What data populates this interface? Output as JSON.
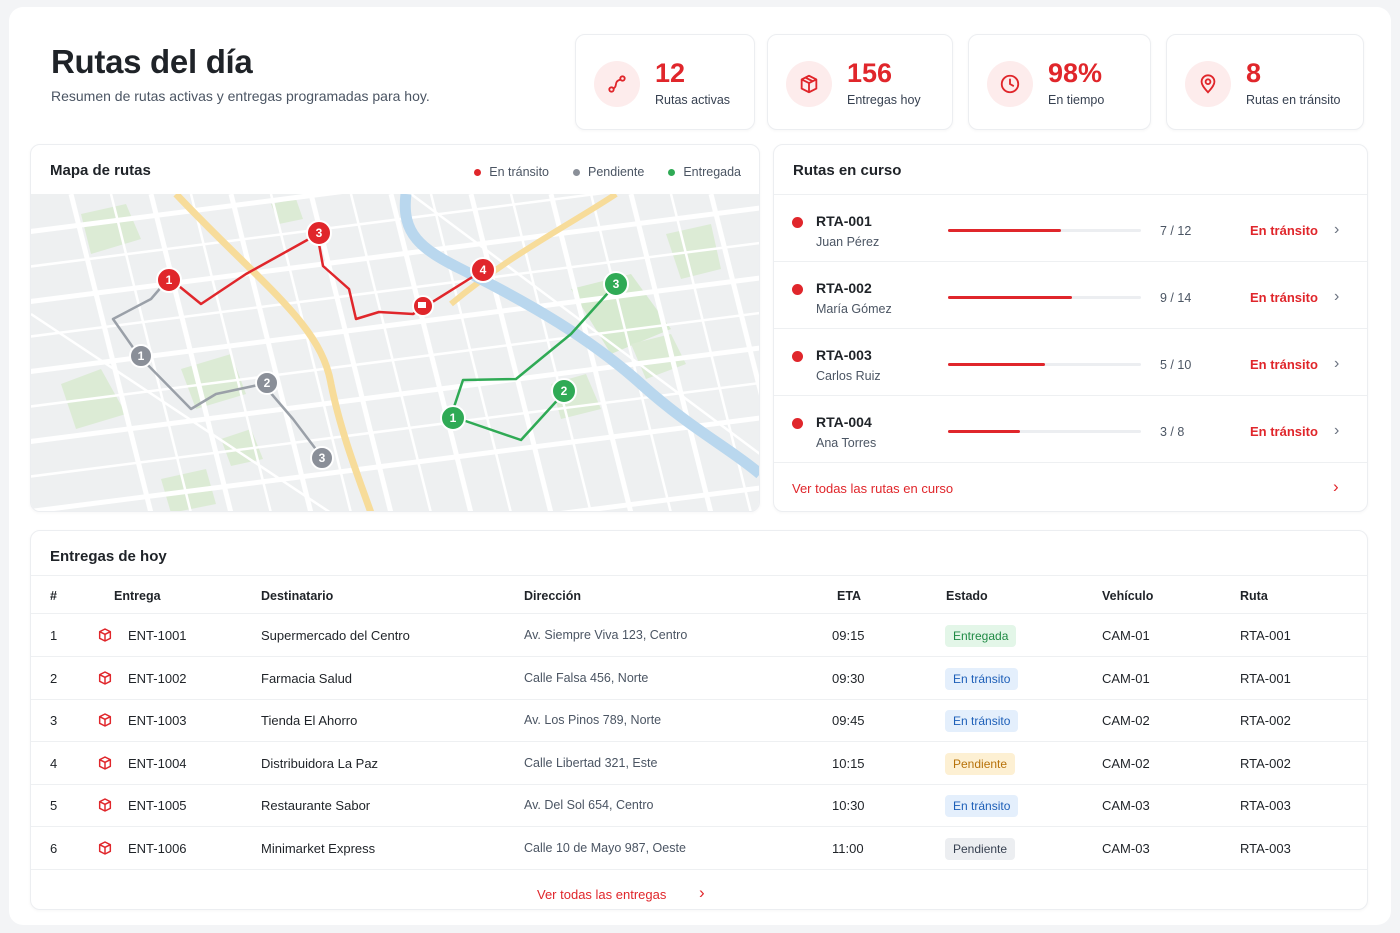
{
  "header": {
    "title": "Rutas del día",
    "subtitle": "Resumen de rutas activas y entregas programadas para hoy."
  },
  "stats": [
    {
      "value": "12",
      "label": "Rutas activas",
      "icon": "route-icon"
    },
    {
      "value": "156",
      "label": "Entregas hoy",
      "icon": "box-icon"
    },
    {
      "value": "98%",
      "label": "En tiempo",
      "icon": "clock-icon"
    },
    {
      "value": "8",
      "label": "Rutas en tránsito",
      "icon": "location-pin-icon"
    }
  ],
  "map_card": {
    "title": "Mapa de rutas",
    "legend": [
      {
        "label": "En tránsito",
        "color": "#e0262b"
      },
      {
        "label": "Pendiente",
        "color": "#8a8f98"
      },
      {
        "label": "Entregada",
        "color": "#2faa55"
      }
    ],
    "markers": {
      "red": [
        "1",
        "3",
        "4"
      ],
      "gray": [
        "1",
        "2",
        "3"
      ],
      "green": [
        "1",
        "2",
        "3"
      ]
    }
  },
  "routes_card": {
    "title": "Rutas en curso",
    "routes": [
      {
        "id": "RTA-001",
        "driver": "Juan Pérez",
        "done": 7,
        "total": 12,
        "progress": "7 / 12",
        "status": "En tránsito"
      },
      {
        "id": "RTA-002",
        "driver": "María Gómez",
        "done": 9,
        "total": 14,
        "progress": "9 / 14",
        "status": "En tránsito"
      },
      {
        "id": "RTA-003",
        "driver": "Carlos Ruiz",
        "done": 5,
        "total": 10,
        "progress": "5 / 10",
        "status": "En tránsito"
      },
      {
        "id": "RTA-004",
        "driver": "Ana Torres",
        "done": 3,
        "total": 8,
        "progress": "3 / 8",
        "status": "En tránsito"
      }
    ],
    "view_all": "Ver todas las rutas en curso"
  },
  "deliveries": {
    "title": "Entregas de hoy",
    "columns": [
      "#",
      "Entrega",
      "Destinatario",
      "Dirección",
      "ETA",
      "Estado",
      "Vehículo",
      "Ruta"
    ],
    "rows": [
      {
        "n": "1",
        "id": "ENT-1001",
        "recipient": "Supermercado del Centro",
        "address": "Av. Siempre Viva 123, Centro",
        "eta": "09:15",
        "status": "Entregada",
        "vehicle": "CAM-01",
        "route": "RTA-001"
      },
      {
        "n": "2",
        "id": "ENT-1002",
        "recipient": "Farmacia Salud",
        "address": "Calle Falsa 456, Norte",
        "eta": "09:30",
        "status": "En tránsito",
        "vehicle": "CAM-01",
        "route": "RTA-001"
      },
      {
        "n": "3",
        "id": "ENT-1003",
        "recipient": "Tienda El Ahorro",
        "address": "Av. Los Pinos 789, Norte",
        "eta": "09:45",
        "status": "En tránsito",
        "vehicle": "CAM-02",
        "route": "RTA-002"
      },
      {
        "n": "4",
        "id": "ENT-1004",
        "recipient": "Distribuidora La Paz",
        "address": "Calle Libertad 321, Este",
        "eta": "10:15",
        "status": "Pendiente",
        "vehicle": "CAM-02",
        "route": "RTA-002"
      },
      {
        "n": "5",
        "id": "ENT-1005",
        "recipient": "Restaurante Sabor",
        "address": "Av. Del Sol 654, Centro",
        "eta": "10:30",
        "status": "En tránsito",
        "vehicle": "CAM-03",
        "route": "RTA-003"
      },
      {
        "n": "6",
        "id": "ENT-1006",
        "recipient": "Minimarket Express",
        "address": "Calle 10 de Mayo 987, Oeste",
        "eta": "11:00",
        "status": "Pendiente",
        "vehicle": "CAM-03",
        "route": "RTA-003"
      }
    ],
    "view_all": "Ver todas las entregas"
  },
  "colors": {
    "accent": "#e0262b",
    "badge_delivered_bg": "#e3f6e8",
    "badge_delivered_fg": "#1f8a44",
    "badge_transit_bg": "#e4effc",
    "badge_transit_fg": "#1d5fb8",
    "badge_pending_bg": "#fdf0d3",
    "badge_pending_fg": "#b7720a",
    "badge_pending_gray_bg": "#eceef1",
    "badge_pending_gray_fg": "#374151"
  }
}
